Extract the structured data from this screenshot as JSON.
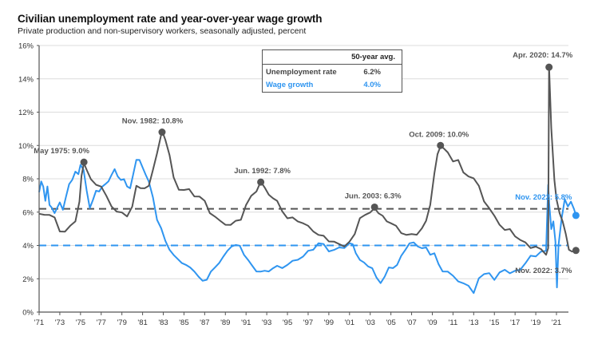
{
  "chart_data": {
    "type": "line",
    "title": "Civilian unemployment rate and year-over-year wage growth",
    "subtitle": "Private production and non-supervisory workers, seasonally adjusted, percent",
    "xlabel": "",
    "ylabel": "",
    "ylim": [
      0,
      16
    ],
    "xlim": [
      1971,
      2023
    ],
    "y_ticks": [
      "0%",
      "2%",
      "4%",
      "6%",
      "8%",
      "10%",
      "12%",
      "14%",
      "16%"
    ],
    "y_tick_values": [
      0,
      2,
      4,
      6,
      8,
      10,
      12,
      14,
      16
    ],
    "x_ticks": [
      "'71",
      "'73",
      "'75",
      "'77",
      "'79",
      "'81",
      "'83",
      "'85",
      "'87",
      "'89",
      "'91",
      "'93",
      "'95",
      "'97",
      "'99",
      "'01",
      "'03",
      "'05",
      "'07",
      "'09",
      "'11",
      "'13",
      "'15",
      "'17",
      "'19",
      "'21"
    ],
    "x_tick_values": [
      1971,
      1973,
      1975,
      1977,
      1979,
      1981,
      1983,
      1985,
      1987,
      1989,
      1991,
      1993,
      1995,
      1997,
      1999,
      2001,
      2003,
      2005,
      2007,
      2009,
      2011,
      2013,
      2015,
      2017,
      2019,
      2021
    ],
    "grid": true,
    "legend": {
      "header": "50-year avg.",
      "placement": "top-center",
      "entries": [
        {
          "name": "Unemployment rate",
          "value": "6.2%",
          "color": "#555555"
        },
        {
          "name": "Wage growth",
          "value": "4.0%",
          "color": "#2f95f0"
        }
      ]
    },
    "averages": [
      {
        "series": "Unemployment rate",
        "value": 6.2,
        "color": "#555555",
        "style": "dashed"
      },
      {
        "series": "Wage growth",
        "value": 4.0,
        "color": "#2f95f0",
        "style": "dashed"
      }
    ],
    "series": [
      {
        "name": "Unemployment rate",
        "color": "#555555",
        "x": [
          1971.0,
          1971.5,
          1972.0,
          1972.5,
          1973.0,
          1973.5,
          1974.0,
          1974.5,
          1974.9,
          1975.1,
          1975.33,
          1975.6,
          1976.0,
          1976.5,
          1977.0,
          1977.5,
          1978.0,
          1978.5,
          1979.0,
          1979.5,
          1980.0,
          1980.4,
          1980.8,
          1981.2,
          1981.6,
          1982.0,
          1982.4,
          1982.88,
          1983.2,
          1983.6,
          1984.0,
          1984.5,
          1985.0,
          1985.5,
          1986.0,
          1986.5,
          1987.0,
          1987.5,
          1988.0,
          1988.5,
          1989.0,
          1989.5,
          1990.0,
          1990.5,
          1991.0,
          1991.5,
          1992.0,
          1992.42,
          1992.8,
          1993.2,
          1993.6,
          1994.0,
          1994.5,
          1995.0,
          1995.5,
          1996.0,
          1996.5,
          1997.0,
          1997.5,
          1998.0,
          1998.5,
          1999.0,
          1999.5,
          2000.0,
          2000.5,
          2001.0,
          2001.5,
          2002.0,
          2002.5,
          2003.0,
          2003.42,
          2003.8,
          2004.2,
          2004.6,
          2005.0,
          2005.5,
          2006.0,
          2006.5,
          2007.0,
          2007.5,
          2008.0,
          2008.4,
          2008.8,
          2009.2,
          2009.5,
          2009.79,
          2010.1,
          2010.5,
          2011.0,
          2011.5,
          2012.0,
          2012.5,
          2013.0,
          2013.5,
          2014.0,
          2014.5,
          2015.0,
          2015.5,
          2016.0,
          2016.5,
          2017.0,
          2017.5,
          2018.0,
          2018.5,
          2019.0,
          2019.5,
          2020.0,
          2020.2,
          2020.28,
          2020.5,
          2020.8,
          2021.0,
          2021.3,
          2021.6,
          2021.9,
          2022.2,
          2022.5,
          2022.88
        ],
        "values": [
          5.9,
          5.9,
          5.8,
          5.6,
          4.9,
          4.8,
          5.1,
          5.5,
          6.6,
          8.1,
          9.0,
          8.5,
          7.9,
          7.7,
          7.5,
          6.9,
          6.4,
          6.0,
          5.9,
          5.8,
          6.3,
          7.5,
          7.5,
          7.4,
          7.5,
          8.6,
          9.5,
          10.8,
          10.4,
          9.4,
          8.0,
          7.4,
          7.3,
          7.3,
          7.0,
          6.9,
          6.6,
          6.0,
          5.7,
          5.4,
          5.3,
          5.2,
          5.4,
          5.6,
          6.4,
          6.9,
          7.3,
          7.8,
          7.4,
          7.1,
          6.8,
          6.6,
          6.1,
          5.6,
          5.6,
          5.5,
          5.3,
          5.1,
          4.9,
          4.6,
          4.5,
          4.3,
          4.2,
          4.0,
          4.0,
          4.2,
          4.6,
          5.7,
          5.8,
          5.9,
          6.3,
          5.9,
          5.7,
          5.5,
          5.3,
          5.1,
          4.8,
          4.6,
          4.6,
          4.7,
          5.0,
          5.4,
          6.5,
          8.3,
          9.4,
          10.0,
          9.8,
          9.5,
          9.1,
          9.1,
          8.3,
          8.2,
          8.0,
          7.5,
          6.7,
          6.2,
          5.7,
          5.3,
          4.9,
          4.9,
          4.6,
          4.3,
          4.1,
          3.9,
          3.9,
          3.7,
          3.5,
          3.8,
          14.7,
          11.1,
          7.9,
          6.7,
          6.0,
          5.4,
          4.6,
          3.8,
          3.6,
          3.7
        ]
      },
      {
        "name": "Wage growth",
        "color": "#2f95f0",
        "x": [
          1971.0,
          1971.2,
          1971.4,
          1971.6,
          1971.8,
          1972.0,
          1972.2,
          1972.5,
          1972.8,
          1973.0,
          1973.3,
          1973.6,
          1973.9,
          1974.2,
          1974.5,
          1974.8,
          1975.0,
          1975.3,
          1975.6,
          1975.9,
          1976.2,
          1976.5,
          1976.8,
          1977.1,
          1977.4,
          1977.7,
          1978.0,
          1978.3,
          1978.6,
          1978.9,
          1979.2,
          1979.5,
          1979.8,
          1980.1,
          1980.4,
          1980.7,
          1981.0,
          1981.3,
          1981.6,
          1982.0,
          1982.4,
          1982.8,
          1983.2,
          1983.6,
          1984.0,
          1984.4,
          1984.8,
          1985.2,
          1985.6,
          1986.0,
          1986.4,
          1986.8,
          1987.2,
          1987.6,
          1988.0,
          1988.4,
          1988.8,
          1989.2,
          1989.6,
          1990.0,
          1990.4,
          1990.8,
          1991.2,
          1991.6,
          1992.0,
          1992.4,
          1992.8,
          1993.2,
          1993.6,
          1994.0,
          1994.5,
          1995.0,
          1995.5,
          1996.0,
          1996.5,
          1997.0,
          1997.5,
          1998.0,
          1998.5,
          1999.0,
          1999.5,
          2000.0,
          2000.5,
          2001.0,
          2001.3,
          2001.6,
          2002.0,
          2002.4,
          2002.8,
          2003.2,
          2003.6,
          2004.0,
          2004.4,
          2004.8,
          2005.2,
          2005.6,
          2006.0,
          2006.4,
          2006.8,
          2007.2,
          2007.6,
          2008.0,
          2008.4,
          2008.8,
          2009.2,
          2009.6,
          2010.0,
          2010.5,
          2011.0,
          2011.5,
          2012.0,
          2012.5,
          2013.0,
          2013.5,
          2014.0,
          2014.5,
          2015.0,
          2015.5,
          2016.0,
          2016.5,
          2017.0,
          2017.5,
          2018.0,
          2018.5,
          2019.0,
          2019.5,
          2020.0,
          2020.2,
          2020.3,
          2020.5,
          2020.7,
          2020.9,
          2021.05,
          2021.2,
          2021.5,
          2021.8,
          2022.1,
          2022.4,
          2022.7,
          2022.88
        ],
        "values": [
          7.2,
          7.9,
          7.5,
          6.6,
          7.6,
          6.4,
          6.2,
          6.0,
          6.3,
          6.5,
          6.2,
          6.9,
          7.6,
          8.0,
          8.4,
          8.2,
          8.9,
          8.5,
          7.2,
          6.3,
          6.7,
          7.2,
          7.3,
          7.5,
          7.6,
          7.9,
          8.2,
          8.5,
          8.2,
          7.9,
          7.9,
          7.6,
          7.4,
          8.2,
          9.2,
          9.1,
          8.6,
          8.3,
          7.8,
          6.8,
          5.6,
          5.0,
          4.2,
          3.8,
          3.4,
          3.1,
          3.0,
          2.8,
          2.6,
          2.5,
          2.1,
          1.8,
          2.0,
          2.4,
          2.6,
          3.0,
          3.3,
          3.6,
          4.0,
          4.0,
          3.9,
          3.5,
          3.1,
          2.7,
          2.5,
          2.4,
          2.4,
          2.5,
          2.6,
          2.7,
          2.7,
          2.8,
          3.0,
          3.2,
          3.3,
          3.6,
          3.8,
          4.1,
          4.0,
          3.7,
          3.7,
          3.8,
          3.9,
          4.1,
          4.0,
          3.6,
          3.1,
          2.9,
          2.8,
          2.6,
          2.0,
          1.8,
          2.1,
          2.6,
          2.7,
          2.8,
          3.3,
          3.8,
          4.1,
          4.1,
          4.0,
          3.8,
          3.8,
          3.5,
          3.5,
          2.8,
          2.5,
          2.4,
          2.1,
          1.9,
          1.7,
          1.5,
          1.2,
          2.0,
          2.2,
          2.4,
          1.9,
          2.3,
          2.6,
          2.3,
          2.4,
          2.6,
          2.9,
          3.3,
          3.4,
          3.6,
          3.6,
          7.7,
          6.5,
          4.9,
          5.5,
          4.2,
          1.4,
          4.1,
          5.6,
          6.7,
          6.4,
          6.6,
          6.1,
          5.8
        ]
      }
    ],
    "annotations": [
      {
        "label": "May 1975: 9.0%",
        "x": 1975.33,
        "y": 9.0,
        "series": "Unemployment rate"
      },
      {
        "label": "Nov. 1982: 10.8%",
        "x": 1982.88,
        "y": 10.8,
        "series": "Unemployment rate"
      },
      {
        "label": "Jun. 1992: 7.8%",
        "x": 1992.42,
        "y": 7.8,
        "series": "Unemployment rate"
      },
      {
        "label": "Jun. 2003: 6.3%",
        "x": 2003.42,
        "y": 6.3,
        "series": "Unemployment rate"
      },
      {
        "label": "Oct. 2009: 10.0%",
        "x": 2009.79,
        "y": 10.0,
        "series": "Unemployment rate"
      },
      {
        "label": "Apr. 2020: 14.7%",
        "x": 2020.28,
        "y": 14.7,
        "series": "Unemployment rate"
      },
      {
        "label": "Nov. 2022: 5.8%",
        "x": 2022.88,
        "y": 5.8,
        "series": "Wage growth"
      },
      {
        "label": "Nov. 2022: 3.7%",
        "x": 2022.88,
        "y": 3.7,
        "series": "Unemployment rate"
      }
    ]
  }
}
